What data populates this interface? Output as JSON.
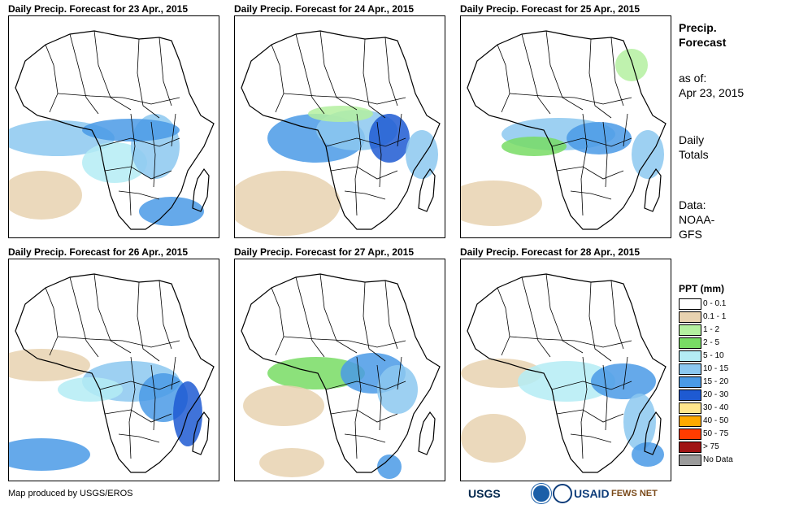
{
  "panels": [
    {
      "title": "Daily Precip. Forecast for 23 Apr., 2015"
    },
    {
      "title": "Daily Precip. Forecast for 24 Apr., 2015"
    },
    {
      "title": "Daily Precip. Forecast for 25 Apr., 2015"
    },
    {
      "title": "Daily Precip. Forecast for 26 Apr., 2015"
    },
    {
      "title": "Daily Precip. Forecast for 27 Apr., 2015"
    },
    {
      "title": "Daily Precip. Forecast for 28 Apr., 2015"
    }
  ],
  "sidebar": {
    "title_line1": "Precip.",
    "title_line2": "Forecast",
    "asof_label": "as of:",
    "asof_date": "Apr 23, 2015",
    "totals_line1": "Daily",
    "totals_line2": "Totals",
    "data_line1": "Data:",
    "data_line2": "NOAA-",
    "data_line3": "GFS"
  },
  "legend": {
    "title": "PPT (mm)",
    "items": [
      {
        "label": "0 - 0.1",
        "color": "#ffffff"
      },
      {
        "label": "0.1 - 1",
        "color": "#e8d2b0"
      },
      {
        "label": "1 - 2",
        "color": "#b4f0a0"
      },
      {
        "label": "2 - 5",
        "color": "#78dc64"
      },
      {
        "label": "5 - 10",
        "color": "#b4ecf4"
      },
      {
        "label": "10 - 15",
        "color": "#8cc8f0"
      },
      {
        "label": "15 - 20",
        "color": "#4a9ae6"
      },
      {
        "label": "20 - 30",
        "color": "#1e5ad2"
      },
      {
        "label": "30 - 40",
        "color": "#ffe68c"
      },
      {
        "label": "40 - 50",
        "color": "#ffaa00"
      },
      {
        "label": "50 - 75",
        "color": "#ff3c00"
      },
      {
        "label": "> 75",
        "color": "#a01414"
      },
      {
        "label": "No Data",
        "color": "#9b9b9b"
      }
    ]
  },
  "footer": {
    "credit": "Map produced by USGS/EROS",
    "logos": {
      "usgs": "USGS",
      "usaid": "USAID",
      "fews": "FEWS NET"
    }
  }
}
